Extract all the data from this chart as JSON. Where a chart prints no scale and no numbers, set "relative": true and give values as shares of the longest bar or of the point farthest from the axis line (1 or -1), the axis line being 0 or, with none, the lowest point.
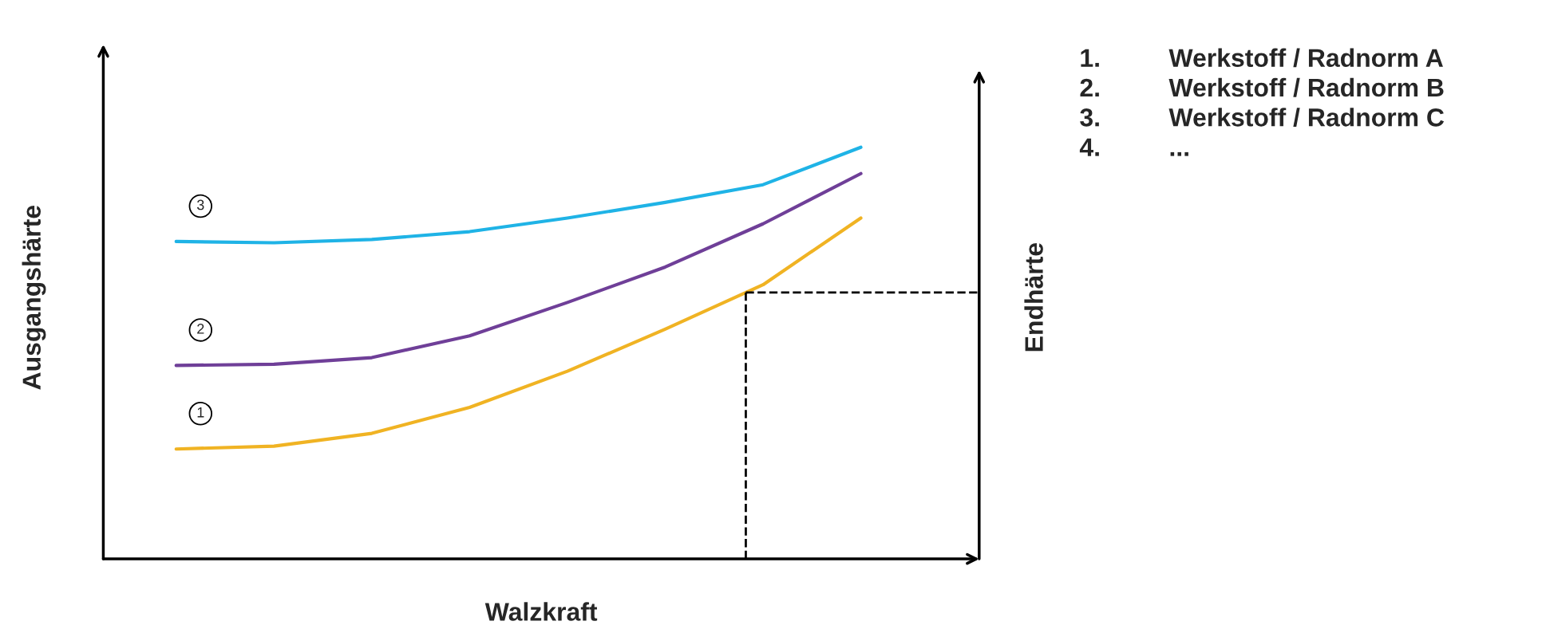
{
  "chart_data": {
    "type": "line",
    "relative": true,
    "xlabel": "Walzkraft",
    "ylabel": "Ausgangshärte",
    "y2label": "Endhärte",
    "categories": [
      null,
      null,
      null,
      null,
      null,
      null,
      null,
      null
    ],
    "series": [
      {
        "name": "1",
        "color": "#f0b323",
        "values": [
          0.267,
          0.274,
          0.305,
          0.368,
          0.456,
          0.558,
          0.666,
          0.828
        ]
      },
      {
        "name": "2",
        "color": "#6f3f98",
        "values": [
          0.47,
          0.473,
          0.489,
          0.542,
          0.623,
          0.709,
          0.814,
          0.936
        ]
      },
      {
        "name": "3",
        "color": "#1fb3e6",
        "values": [
          0.771,
          0.768,
          0.776,
          0.795,
          0.828,
          0.866,
          0.909,
          1.0
        ]
      }
    ],
    "ref_lines": [
      {
        "axis": "y",
        "value": 0.647,
        "line_style": "dashed",
        "color": "#000000"
      }
    ],
    "annotations": [
      "1.\tWerkstoff / Radnorm A",
      "2.\tWerkstoff / Radnorm B",
      "3.\tWerkstoff / Radnorm C",
      "4.\t..."
    ],
    "grid": false
  }
}
